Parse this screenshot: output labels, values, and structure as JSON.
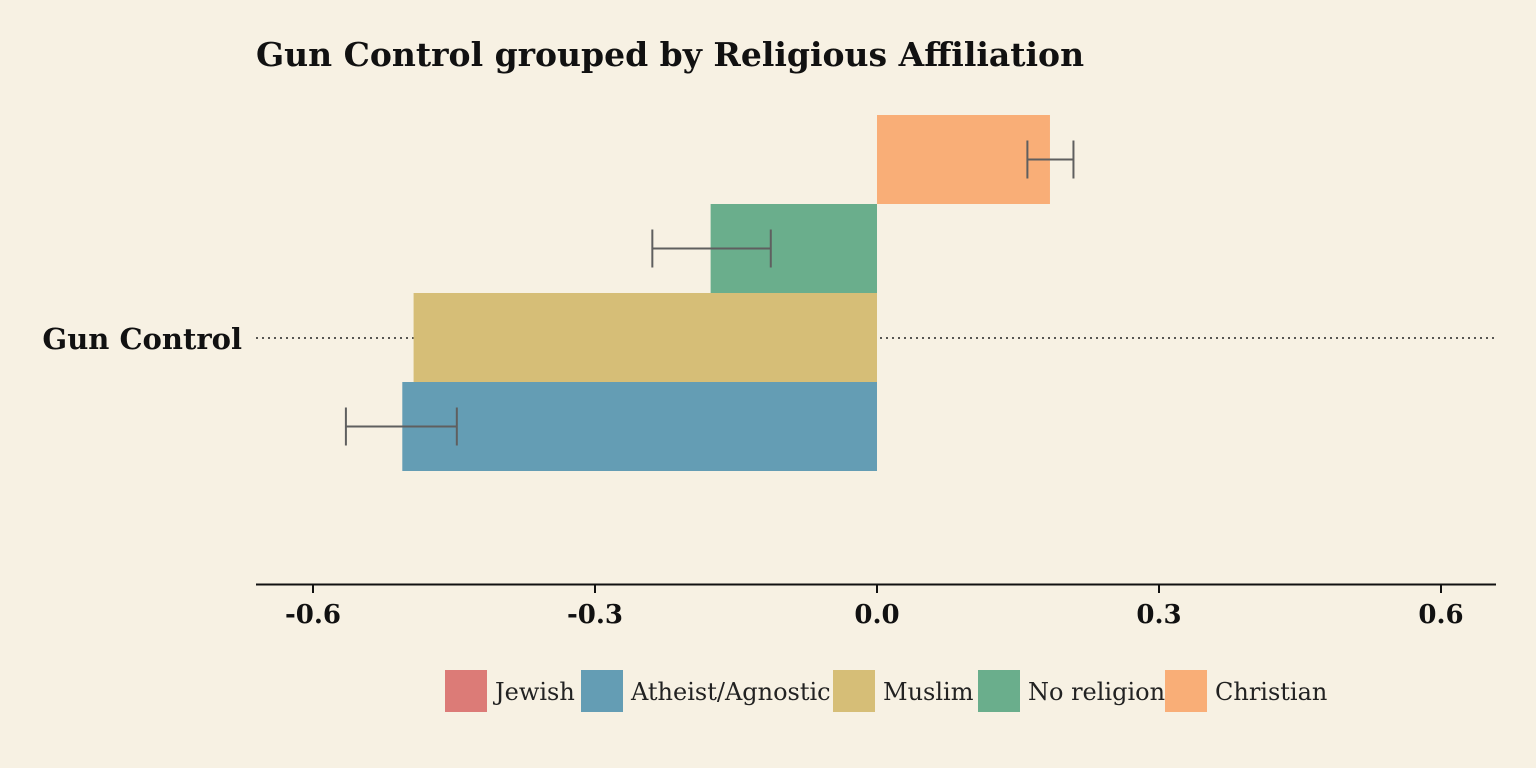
{
  "chart_data": {
    "type": "bar",
    "orientation": "horizontal",
    "title": "Gun Control grouped by Religious Affiliation",
    "categories": [
      "Gun Control"
    ],
    "xlim": [
      -0.65,
      0.65
    ],
    "xticks": [
      -0.6,
      -0.3,
      0.0,
      0.3,
      0.6
    ],
    "xtick_labels": [
      "-0.6",
      "-0.3",
      "0.0",
      "0.3",
      "0.6"
    ],
    "xlabel": "",
    "ylabel": "",
    "grid": false,
    "legend_position": "bottom",
    "series": [
      {
        "name": "Jewish",
        "color": "#dc7b77",
        "values": [
          null
        ],
        "error": [
          null
        ]
      },
      {
        "name": "Atheist/Agnostic",
        "color": "#649db4",
        "values": [
          -0.505
        ],
        "error_low": [
          -0.565
        ],
        "error_high": [
          -0.447
        ]
      },
      {
        "name": "Muslim",
        "color": "#d6be77",
        "values": [
          -0.493
        ],
        "error_low": [
          null
        ],
        "error_high": [
          null
        ]
      },
      {
        "name": "No religion",
        "color": "#6aae8c",
        "values": [
          -0.177
        ],
        "error_low": [
          -0.239
        ],
        "error_high": [
          -0.113
        ]
      },
      {
        "name": "Christian",
        "color": "#f9ae77",
        "values": [
          0.184
        ],
        "error_low": [
          0.16
        ],
        "error_high": [
          0.209
        ]
      }
    ]
  }
}
